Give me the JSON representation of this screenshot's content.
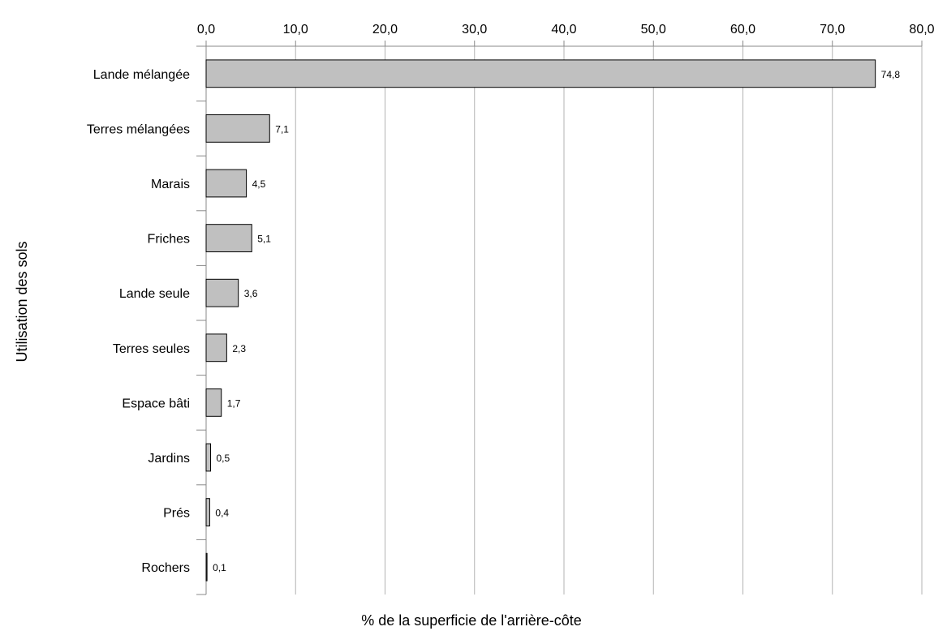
{
  "chart_data": {
    "type": "bar",
    "orientation": "horizontal",
    "title": "",
    "xlabel": "% de la superficie de l'arrière-côte",
    "ylabel": "Utilisation des sols",
    "xlim": [
      0,
      80
    ],
    "x_ticks": [
      0,
      10,
      20,
      30,
      40,
      50,
      60,
      70,
      80
    ],
    "x_tick_labels": [
      "0,0",
      "10,0",
      "20,0",
      "30,0",
      "40,0",
      "50,0",
      "60,0",
      "70,0",
      "80,0"
    ],
    "x_axis_position": "top",
    "grid": "vertical",
    "legend": "none",
    "bar_color": "#c0c0c0",
    "bar_edge_color": "#000000",
    "grid_color": "#b3b3b3",
    "categories": [
      "Lande mélangée",
      "Terres mélangées",
      "Marais",
      "Friches",
      "Lande seule",
      "Terres seules",
      "Espace bâti",
      "Jardins",
      "Prés",
      "Rochers"
    ],
    "values": [
      74.8,
      7.1,
      4.5,
      5.1,
      3.6,
      2.3,
      1.7,
      0.5,
      0.4,
      0.1
    ],
    "data_labels": [
      "74,8",
      "7,1",
      "4,5",
      "5,1",
      "3,6",
      "2,3",
      "1,7",
      "0,5",
      "0,4",
      "0,1"
    ]
  }
}
